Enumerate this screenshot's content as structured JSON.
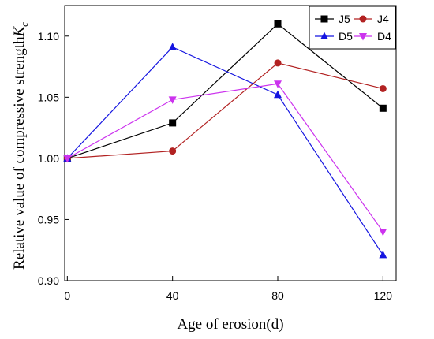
{
  "chart_data": {
    "type": "line",
    "x": [
      0,
      40,
      80,
      120
    ],
    "xlabel": "Age of erosion(d)",
    "ylabel": "Relative value of compressive strength",
    "ylabel_symbol": "K",
    "ylabel_subscript": "c",
    "xlim": [
      -1,
      125
    ],
    "ylim": [
      0.9,
      1.125
    ],
    "xticks": [
      0,
      40,
      80,
      120
    ],
    "yticks": [
      "0.90",
      "0.95",
      "1.00",
      "1.05",
      "1.10"
    ],
    "grid": false,
    "legend_position": "top-right",
    "series": [
      {
        "name": "J5",
        "values": [
          1.0,
          1.029,
          1.11,
          1.041
        ],
        "color": "#000000",
        "marker": "square"
      },
      {
        "name": "J4",
        "values": [
          1.0,
          1.006,
          1.078,
          1.057
        ],
        "color": "#b22222",
        "marker": "circle"
      },
      {
        "name": "D5",
        "values": [
          1.0,
          1.091,
          1.052,
          0.921
        ],
        "color": "#1515e0",
        "marker": "triangle-up"
      },
      {
        "name": "D4",
        "values": [
          1.0,
          1.048,
          1.061,
          0.94
        ],
        "color": "#cc33ee",
        "marker": "triangle-down"
      }
    ]
  }
}
